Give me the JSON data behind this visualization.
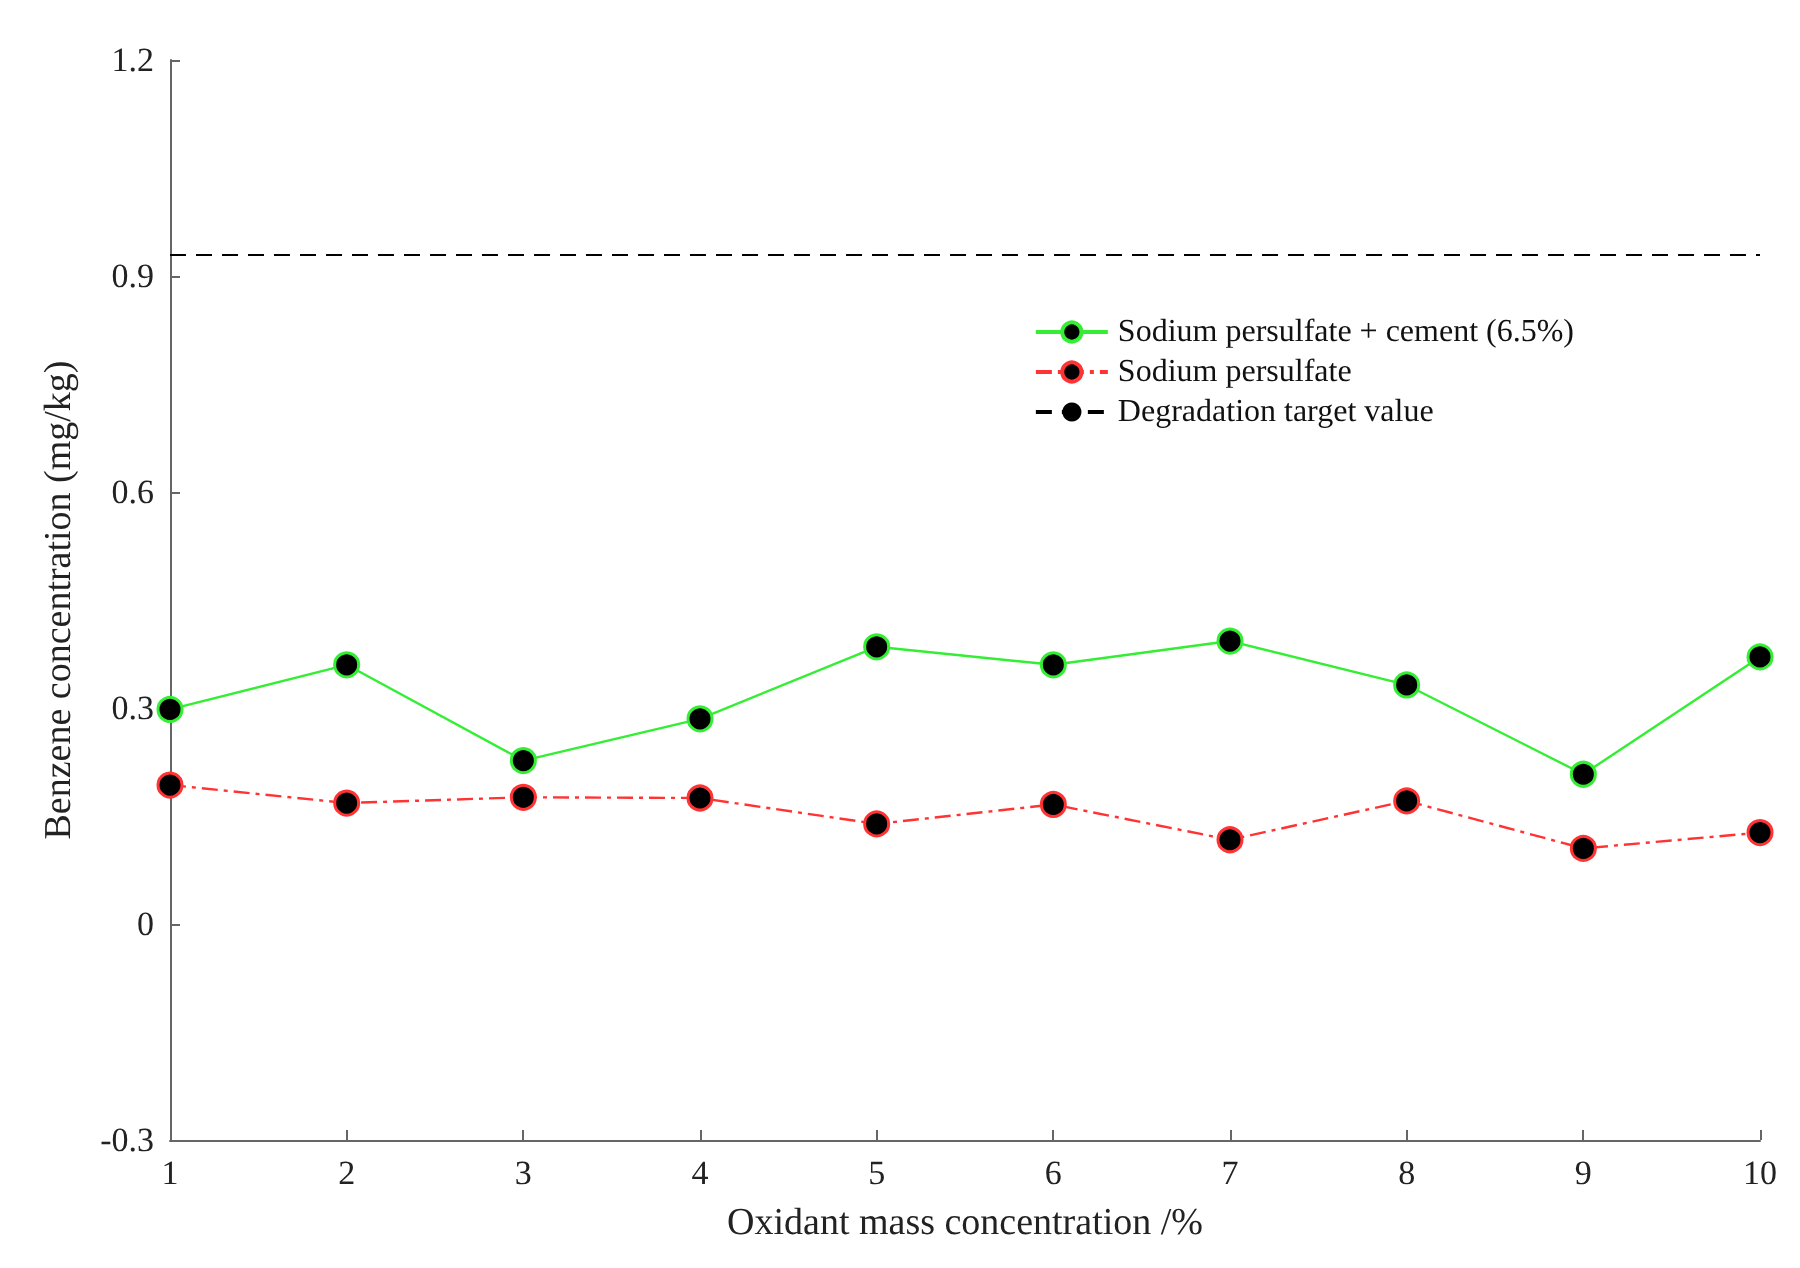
{
  "chart_data": {
    "type": "line",
    "xlabel": "Oxidant mass concentration /%",
    "ylabel": "Benzene concentration (mg/kg)",
    "x": [
      1,
      2,
      3,
      4,
      5,
      6,
      7,
      8,
      9,
      10
    ],
    "series": [
      {
        "name": "Sodium persulfate + cement (6.5%)",
        "color": "#33ee33",
        "line_style": "solid",
        "values": [
          0.298,
          0.36,
          0.227,
          0.285,
          0.385,
          0.36,
          0.393,
          0.332,
          0.208,
          0.371
        ]
      },
      {
        "name": "Sodium persulfate",
        "color": "#ff3333",
        "line_style": "dashdot",
        "values": [
          0.193,
          0.168,
          0.176,
          0.175,
          0.139,
          0.166,
          0.117,
          0.171,
          0.105,
          0.127
        ]
      }
    ],
    "ref_lines": [
      {
        "axis": "y",
        "value": 0.93,
        "label": "Degradation target value",
        "color": "#000000",
        "line_style": "dashed"
      }
    ],
    "xlim": [
      1,
      10
    ],
    "xticks": [
      1,
      2,
      3,
      4,
      5,
      6,
      7,
      8,
      9,
      10
    ],
    "ylim": [
      -0.3,
      1.2
    ],
    "yticks": [
      -0.3,
      0,
      0.3,
      0.6,
      0.9,
      1.2
    ],
    "grid": false,
    "legend": "top right",
    "marker": "circle"
  }
}
